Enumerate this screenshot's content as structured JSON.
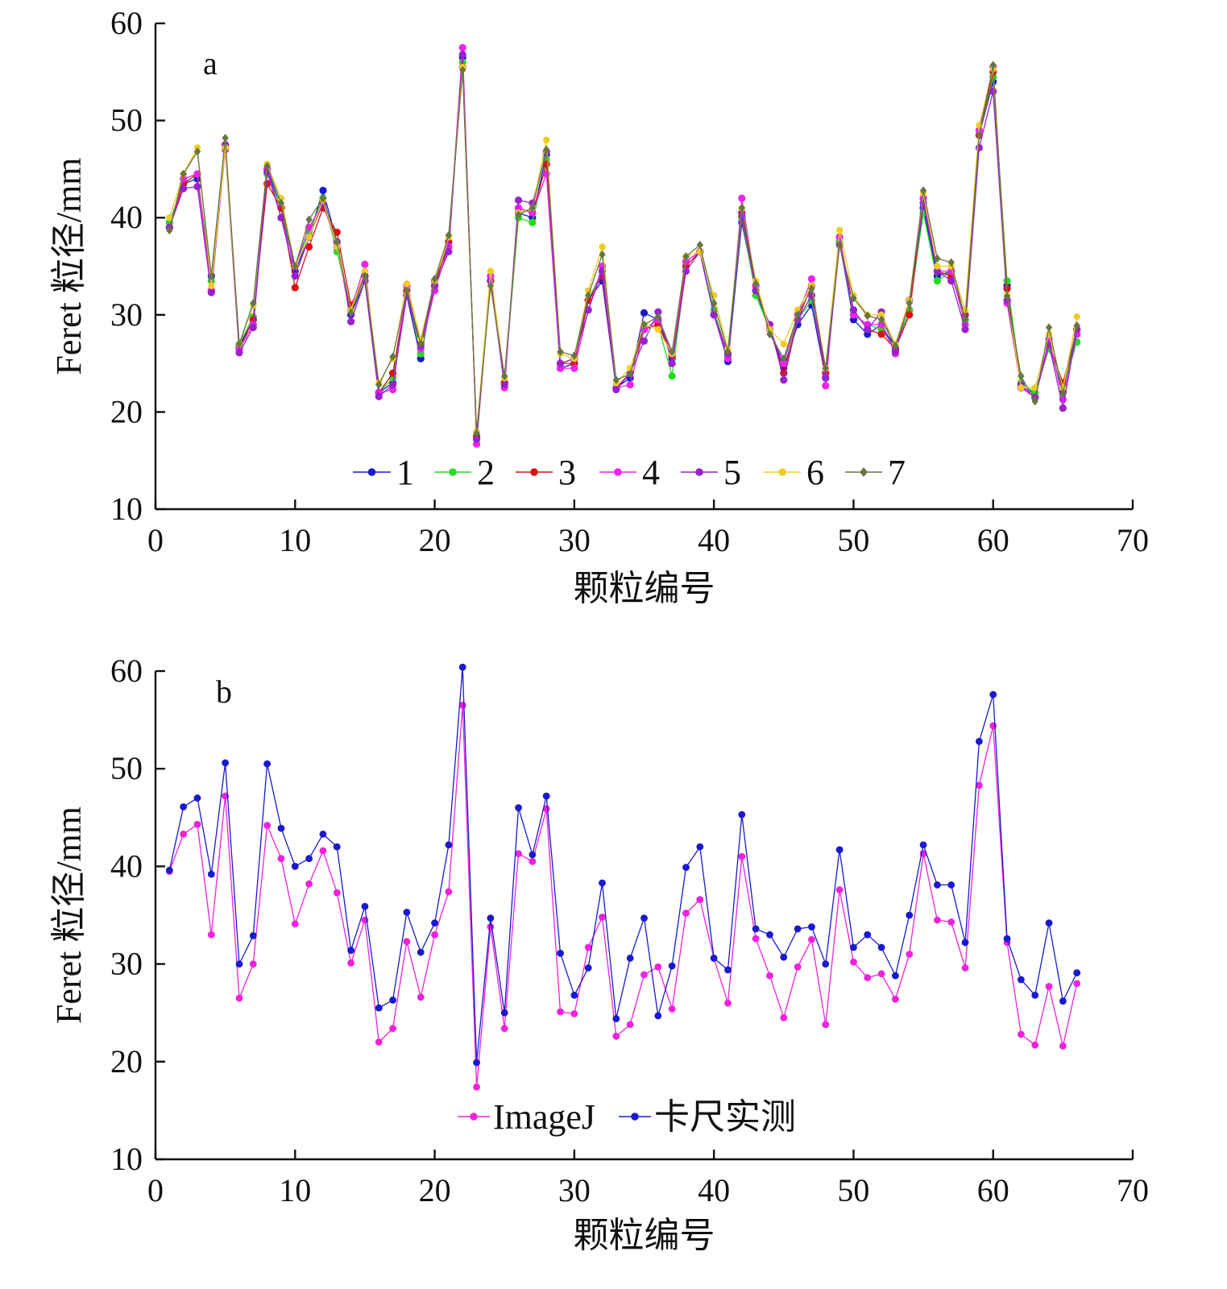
{
  "chart_data": [
    {
      "panel_label": "a",
      "type": "line",
      "xlabel": "颗粒编号",
      "ylabel": "Feret 粒径/mm",
      "xlim": [
        0,
        70
      ],
      "ylim": [
        10,
        60
      ],
      "xticks": [
        0,
        10,
        20,
        30,
        40,
        50,
        60,
        70
      ],
      "yticks": [
        10,
        20,
        30,
        40,
        50,
        60
      ],
      "grid": false,
      "legend_position": "bottom-center",
      "x": [
        1,
        2,
        3,
        4,
        5,
        6,
        7,
        8,
        9,
        10,
        11,
        12,
        13,
        14,
        15,
        16,
        17,
        18,
        19,
        20,
        21,
        22,
        23,
        24,
        25,
        26,
        27,
        28,
        29,
        30,
        31,
        32,
        33,
        34,
        35,
        36,
        37,
        38,
        39,
        40,
        41,
        42,
        43,
        44,
        45,
        46,
        47,
        48,
        49,
        50,
        51,
        52,
        53,
        54,
        55,
        56,
        57,
        58,
        59,
        60,
        61,
        62,
        63,
        64,
        65,
        66
      ],
      "series": [
        {
          "name": "1",
          "color": "#1a1acc",
          "values": [
            39.5,
            43.5,
            44.0,
            34.0,
            47.5,
            26.8,
            29.5,
            45.0,
            41.0,
            34.5,
            38.0,
            42.8,
            37.5,
            30.0,
            33.5,
            22.0,
            23.0,
            32.0,
            25.5,
            33.5,
            37.0,
            56.5,
            17.5,
            33.5,
            23.0,
            40.5,
            40.0,
            46.5,
            24.5,
            25.0,
            31.5,
            33.5,
            22.5,
            23.5,
            30.2,
            29.5,
            25.5,
            35.5,
            36.5,
            30.0,
            25.2,
            39.5,
            32.5,
            28.5,
            24.5,
            29.0,
            31.0,
            23.5,
            37.5,
            29.5,
            28.0,
            29.0,
            26.5,
            30.5,
            41.0,
            34.0,
            34.5,
            29.5,
            48.5,
            54.0,
            33.0,
            22.5,
            22.0,
            27.0,
            22.0,
            28.5
          ]
        },
        {
          "name": "2",
          "color": "#22dd22",
          "values": [
            39.5,
            43.5,
            44.5,
            33.5,
            47.5,
            27.0,
            29.8,
            44.5,
            41.0,
            35.0,
            38.5,
            42.0,
            36.5,
            30.5,
            34.0,
            22.0,
            23.5,
            32.5,
            26.0,
            33.0,
            37.5,
            56.0,
            17.5,
            34.0,
            23.0,
            40.0,
            39.5,
            46.0,
            25.0,
            25.5,
            31.5,
            34.5,
            22.5,
            24.0,
            28.5,
            29.0,
            23.7,
            35.0,
            36.5,
            30.5,
            25.8,
            40.0,
            32.0,
            28.5,
            25.0,
            29.5,
            31.5,
            24.0,
            37.5,
            30.0,
            29.0,
            28.5,
            26.5,
            30.5,
            40.5,
            33.5,
            34.5,
            29.5,
            48.5,
            54.5,
            33.5,
            23.0,
            22.0,
            26.5,
            22.5,
            27.2
          ]
        },
        {
          "name": "3",
          "color": "#dd1111",
          "values": [
            39.0,
            43.5,
            44.5,
            32.5,
            47.5,
            26.5,
            29.5,
            43.5,
            41.0,
            32.8,
            37.0,
            41.0,
            38.5,
            31.0,
            34.0,
            22.0,
            24.0,
            32.5,
            27.0,
            33.0,
            37.5,
            55.5,
            17.5,
            33.5,
            23.0,
            41.0,
            40.5,
            45.5,
            25.0,
            25.0,
            31.5,
            34.0,
            22.5,
            24.0,
            28.5,
            29.0,
            25.8,
            35.0,
            36.5,
            30.0,
            26.0,
            40.5,
            33.0,
            28.5,
            24.0,
            29.5,
            33.0,
            24.0,
            38.0,
            30.5,
            28.5,
            28.0,
            26.5,
            30.0,
            42.0,
            34.5,
            34.0,
            30.0,
            48.5,
            55.0,
            32.7,
            22.5,
            21.5,
            27.0,
            23.0,
            28.5
          ]
        },
        {
          "name": "4",
          "color": "#ee22ee",
          "values": [
            39.0,
            44.0,
            44.5,
            32.5,
            47.0,
            26.5,
            29.0,
            45.0,
            40.0,
            35.0,
            39.0,
            41.5,
            37.0,
            30.5,
            35.2,
            22.0,
            22.3,
            33.0,
            26.5,
            32.5,
            37.0,
            57.5,
            16.7,
            34.0,
            22.5,
            41.0,
            40.5,
            44.5,
            24.5,
            24.5,
            30.5,
            35.0,
            22.5,
            22.8,
            28.5,
            29.5,
            26.0,
            35.5,
            36.5,
            30.0,
            25.5,
            42.0,
            33.0,
            28.5,
            25.0,
            30.0,
            33.7,
            22.7,
            38.0,
            30.0,
            29.0,
            29.0,
            26.0,
            31.5,
            42.0,
            34.5,
            34.5,
            29.0,
            49.0,
            55.5,
            31.2,
            22.5,
            21.5,
            27.5,
            21.3,
            28.0
          ]
        },
        {
          "name": "5",
          "color": "#9922cc",
          "values": [
            39.0,
            43.0,
            43.2,
            32.3,
            47.5,
            26.1,
            28.7,
            44.7,
            40.0,
            34.0,
            38.0,
            41.5,
            37.5,
            29.3,
            33.5,
            21.6,
            22.8,
            32.0,
            26.8,
            33.0,
            36.5,
            56.8,
            17.2,
            33.5,
            22.8,
            41.8,
            41.5,
            46.8,
            25.0,
            25.5,
            30.5,
            34.5,
            22.3,
            24.0,
            27.3,
            30.3,
            25.0,
            34.5,
            36.5,
            30.0,
            26.0,
            40.2,
            32.5,
            29.0,
            23.3,
            29.5,
            32.0,
            23.5,
            37.2,
            30.5,
            28.5,
            30.3,
            26.2,
            31.5,
            41.5,
            34.5,
            33.5,
            28.5,
            47.2,
            53.0,
            31.5,
            22.8,
            21.5,
            27.0,
            20.4,
            28.5
          ]
        },
        {
          "name": "6",
          "color": "#eecc22",
          "values": [
            40.0,
            44.5,
            47.2,
            33.0,
            47.2,
            27.0,
            31.0,
            45.5,
            42.0,
            35.0,
            38.0,
            41.8,
            37.0,
            30.5,
            34.5,
            23.0,
            25.5,
            33.2,
            27.5,
            33.5,
            38.0,
            55.5,
            18.0,
            34.5,
            23.5,
            40.5,
            41.0,
            48.0,
            26.0,
            25.5,
            32.5,
            37.0,
            23.0,
            24.5,
            29.0,
            28.5,
            26.0,
            36.0,
            36.5,
            32.0,
            26.5,
            41.0,
            33.5,
            28.5,
            27.0,
            30.5,
            33.0,
            24.5,
            38.7,
            32.0,
            30.0,
            30.0,
            27.0,
            31.5,
            42.5,
            35.0,
            35.0,
            30.5,
            49.5,
            55.3,
            32.0,
            22.5,
            22.5,
            28.0,
            22.5,
            29.8
          ]
        },
        {
          "name": "7",
          "color": "#667744",
          "values": [
            38.7,
            44.5,
            46.8,
            34.0,
            48.2,
            27.0,
            31.2,
            45.3,
            41.5,
            35.0,
            39.8,
            42.0,
            37.5,
            30.2,
            34.0,
            22.8,
            25.7,
            32.5,
            27.0,
            33.7,
            38.2,
            55.2,
            17.8,
            33.0,
            23.7,
            40.3,
            41.0,
            47.0,
            26.2,
            25.8,
            32.0,
            36.2,
            23.3,
            23.9,
            29.0,
            29.8,
            26.2,
            36.0,
            37.2,
            31.2,
            26.2,
            41.0,
            33.2,
            28.0,
            25.5,
            30.0,
            32.7,
            24.5,
            37.2,
            31.7,
            29.9,
            29.5,
            26.8,
            31.2,
            42.8,
            35.8,
            35.4,
            29.5,
            48.5,
            55.7,
            31.9,
            23.7,
            21.1,
            28.7,
            21.9,
            28.9
          ]
        }
      ]
    },
    {
      "panel_label": "b",
      "type": "line",
      "xlabel": "颗粒编号",
      "ylabel": "Feret 粒径/mm",
      "xlim": [
        0,
        70
      ],
      "ylim": [
        10,
        60
      ],
      "xticks": [
        0,
        10,
        20,
        30,
        40,
        50,
        60,
        70
      ],
      "yticks": [
        10,
        20,
        30,
        40,
        50,
        60
      ],
      "grid": false,
      "legend_position": "bottom-center",
      "x": [
        1,
        2,
        3,
        4,
        5,
        6,
        7,
        8,
        9,
        10,
        11,
        12,
        13,
        14,
        15,
        16,
        17,
        18,
        19,
        20,
        21,
        22,
        23,
        24,
        25,
        26,
        27,
        28,
        29,
        30,
        31,
        32,
        33,
        34,
        35,
        36,
        37,
        38,
        39,
        40,
        41,
        42,
        43,
        44,
        45,
        46,
        47,
        48,
        49,
        50,
        51,
        52,
        53,
        54,
        55,
        56,
        57,
        58,
        59,
        60,
        61,
        62,
        63,
        64,
        65,
        66
      ],
      "series": [
        {
          "name": "ImageJ",
          "color": "#ee22dd",
          "values": [
            39.5,
            43.3,
            44.3,
            33.0,
            47.2,
            26.5,
            30.0,
            44.2,
            40.8,
            34.1,
            38.2,
            41.6,
            37.3,
            30.1,
            34.5,
            22.0,
            23.4,
            32.3,
            26.6,
            33.0,
            37.4,
            56.5,
            17.4,
            33.8,
            23.4,
            41.3,
            40.5,
            45.9,
            25.1,
            24.9,
            31.7,
            34.8,
            22.6,
            23.8,
            28.9,
            29.7,
            25.4,
            35.2,
            36.6,
            30.6,
            26.0,
            41.0,
            32.6,
            28.8,
            24.5,
            29.7,
            32.5,
            23.8,
            37.6,
            30.2,
            28.6,
            29.0,
            26.4,
            31.0,
            41.3,
            34.5,
            34.3,
            29.6,
            48.3,
            54.4,
            32.2,
            22.8,
            21.7,
            27.7,
            21.6,
            28.0
          ]
        },
        {
          "name": "卡尺实测",
          "color": "#1a1acc",
          "values": [
            39.6,
            46.1,
            47.0,
            39.2,
            50.6,
            30.0,
            32.9,
            50.5,
            43.9,
            40.0,
            40.8,
            43.3,
            42.0,
            31.4,
            35.9,
            25.5,
            26.3,
            35.3,
            31.2,
            34.2,
            42.2,
            60.4,
            19.9,
            34.7,
            25.0,
            46.0,
            41.2,
            47.2,
            31.1,
            26.8,
            29.6,
            38.3,
            24.4,
            30.6,
            34.7,
            24.7,
            29.8,
            39.9,
            42.0,
            30.6,
            29.4,
            45.3,
            33.6,
            33.0,
            30.7,
            33.6,
            33.8,
            30.0,
            41.7,
            31.7,
            33.0,
            31.7,
            28.8,
            35.0,
            42.2,
            38.1,
            38.1,
            32.2,
            52.8,
            57.6,
            32.6,
            28.4,
            26.8,
            34.2,
            26.2,
            29.1
          ]
        }
      ]
    }
  ]
}
